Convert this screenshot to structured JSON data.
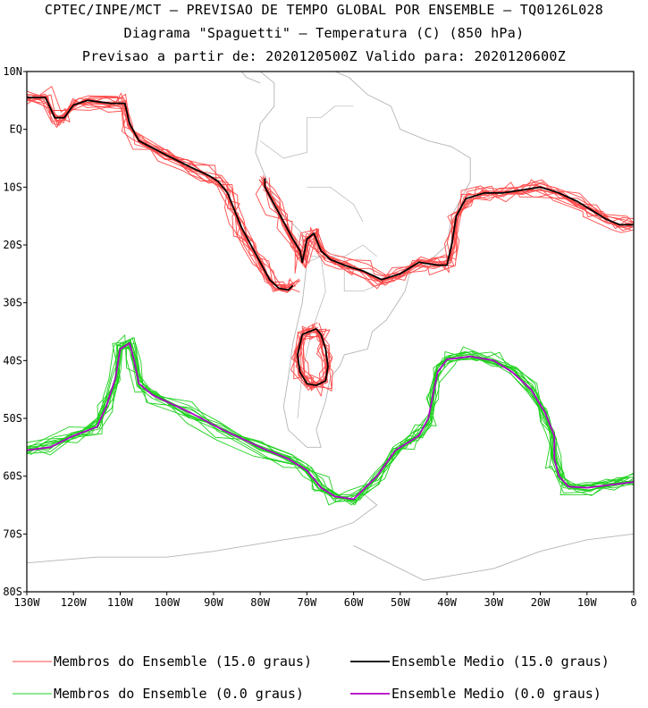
{
  "title": {
    "line1": "CPTEC/INPE/MCT – PREVISAO DE TEMPO GLOBAL POR ENSEMBLE – TQ0126L028",
    "line2": "Diagrama \"Spaguetti\" – Temperatura (C) (850 hPa)",
    "line3": "Previsao a partir de: 2020120500Z  Valido para: 2020120600Z"
  },
  "colors": {
    "members_15": "#ff4a4a",
    "mean_15": "#000000",
    "members_0": "#1fd11f",
    "mean_0": "#b000c8",
    "coast": "#b4b4b4"
  },
  "chart_data": {
    "type": "line",
    "map_projection": "lat-lon",
    "xlim": [
      -130,
      0
    ],
    "ylim": [
      -80,
      10
    ],
    "x_ticks": [
      "130W",
      "120W",
      "110W",
      "100W",
      "90W",
      "80W",
      "70W",
      "60W",
      "50W",
      "40W",
      "30W",
      "20W",
      "10W",
      "0"
    ],
    "y_ticks": [
      "10N",
      "EQ",
      "10S",
      "20S",
      "30S",
      "40S",
      "50S",
      "60S",
      "70S",
      "80S"
    ],
    "series": [
      {
        "name": "Ensemble Medio (15.0 graus)",
        "key": "mean15",
        "points": [
          [
            -130,
            5.5
          ],
          [
            -126,
            5.5
          ],
          [
            -124,
            2
          ],
          [
            -122,
            2
          ],
          [
            -120,
            4.2
          ],
          [
            -117,
            5
          ],
          [
            -112,
            4.5
          ],
          [
            -109,
            4.5
          ],
          [
            -108,
            1
          ],
          [
            -106,
            -2
          ],
          [
            -100,
            -4.5
          ],
          [
            -95,
            -6.5
          ],
          [
            -91,
            -8
          ],
          [
            -89,
            -9
          ],
          [
            -87,
            -11
          ],
          [
            -86,
            -13
          ],
          [
            -85,
            -15
          ],
          [
            -84,
            -17
          ],
          [
            -82,
            -20
          ],
          [
            -80,
            -23
          ],
          [
            -78,
            -26
          ],
          [
            -76,
            -27.5
          ],
          [
            -74,
            -27.8
          ],
          [
            -73,
            -27
          ]
        ]
      },
      {
        "name": "Ensemble Medio (15.0 graus)",
        "key": "mean15b",
        "points": [
          [
            -79,
            -8.5
          ],
          [
            -79,
            -10
          ],
          [
            -77,
            -13
          ],
          [
            -75,
            -16
          ],
          [
            -73,
            -19
          ],
          [
            -71.5,
            -21
          ],
          [
            -71,
            -23
          ],
          [
            -70,
            -19
          ],
          [
            -68.5,
            -18
          ],
          [
            -67,
            -21
          ],
          [
            -65,
            -22.5
          ],
          [
            -62,
            -23.5
          ],
          [
            -58,
            -24.5
          ],
          [
            -54,
            -26
          ],
          [
            -50,
            -25
          ],
          [
            -46,
            -23
          ],
          [
            -42,
            -23.5
          ],
          [
            -40,
            -23.5
          ],
          [
            -39,
            -20
          ],
          [
            -38,
            -15
          ],
          [
            -36,
            -12
          ],
          [
            -32,
            -11
          ],
          [
            -28,
            -11
          ],
          [
            -24,
            -10.5
          ],
          [
            -20,
            -10
          ],
          [
            -16,
            -11
          ],
          [
            -12,
            -12.5
          ],
          [
            -9,
            -14
          ],
          [
            -6,
            -15.5
          ],
          [
            -3,
            -16.5
          ],
          [
            0,
            -16.5
          ]
        ]
      },
      {
        "name": "Ensemble Medio (15.0 graus)",
        "key": "mean15c",
        "points": [
          [
            -68,
            -34.5
          ],
          [
            -71,
            -35.5
          ],
          [
            -72,
            -39
          ],
          [
            -71.5,
            -42
          ],
          [
            -70,
            -44
          ],
          [
            -68,
            -44.3
          ],
          [
            -66,
            -43.5
          ],
          [
            -65.5,
            -41
          ],
          [
            -66,
            -38
          ],
          [
            -67,
            -35.5
          ],
          [
            -68,
            -34.5
          ]
        ]
      },
      {
        "name": "Ensemble Medio (0.0 graus)",
        "key": "mean0",
        "points": [
          [
            -130,
            -55.5
          ],
          [
            -125,
            -55
          ],
          [
            -120,
            -53
          ],
          [
            -115,
            -51.5
          ],
          [
            -113,
            -48
          ],
          [
            -111,
            -43
          ],
          [
            -110,
            -38
          ],
          [
            -108,
            -37
          ],
          [
            -107,
            -40
          ],
          [
            -106,
            -44
          ],
          [
            -103,
            -46
          ],
          [
            -95,
            -49
          ],
          [
            -88,
            -52
          ],
          [
            -80,
            -55
          ],
          [
            -74,
            -57
          ],
          [
            -70,
            -59
          ],
          [
            -67,
            -62
          ],
          [
            -64,
            -63.5
          ],
          [
            -60,
            -64
          ],
          [
            -55,
            -60
          ],
          [
            -51,
            -55.5
          ],
          [
            -48,
            -54
          ],
          [
            -46,
            -53
          ],
          [
            -44,
            -50
          ],
          [
            -43,
            -46
          ],
          [
            -42,
            -42
          ],
          [
            -40,
            -39.8
          ],
          [
            -35,
            -39.3
          ],
          [
            -30,
            -40
          ],
          [
            -26,
            -42
          ],
          [
            -22,
            -45
          ],
          [
            -19,
            -49
          ],
          [
            -17,
            -53
          ],
          [
            -17,
            -57
          ],
          [
            -16,
            -60
          ],
          [
            -14,
            -61.8
          ],
          [
            -10,
            -62
          ],
          [
            -5,
            -61.5
          ],
          [
            0,
            -61
          ]
        ]
      }
    ],
    "legend": [
      {
        "label": "Membros do Ensemble (15.0 graus)",
        "key": "members_15",
        "style": "thin"
      },
      {
        "label": "Ensemble Medio (15.0 graus)",
        "key": "mean_15",
        "style": "thick"
      },
      {
        "label": "Membros do Ensemble (0.0 graus)",
        "key": "members_0",
        "style": "thin"
      },
      {
        "label": "Ensemble Medio (0.0 graus)",
        "key": "mean_0",
        "style": "thick"
      }
    ]
  }
}
